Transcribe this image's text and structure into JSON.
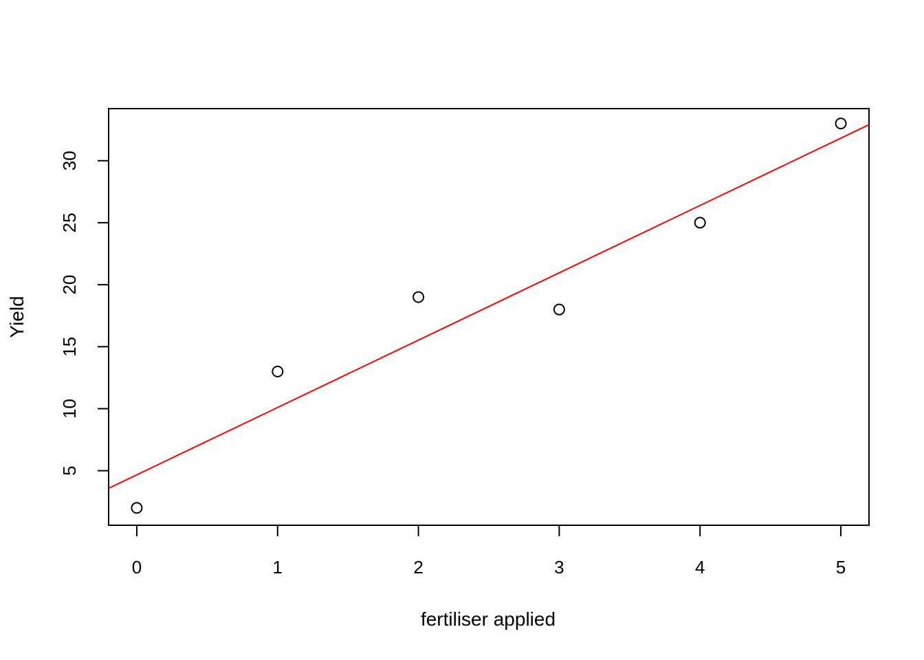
{
  "chart_data": {
    "type": "scatter",
    "title": "",
    "xlabel": "fertiliser applied",
    "ylabel": "Yield",
    "xlim": [
      -0.2,
      5.2
    ],
    "ylim": [
      0.6,
      34.2
    ],
    "x_ticks": [
      0,
      1,
      2,
      3,
      4,
      5
    ],
    "y_ticks": [
      5,
      10,
      15,
      20,
      25,
      30
    ],
    "grid": false,
    "points": [
      {
        "x": 0,
        "y": 2
      },
      {
        "x": 1,
        "y": 13
      },
      {
        "x": 2,
        "y": 19
      },
      {
        "x": 3,
        "y": 18
      },
      {
        "x": 4,
        "y": 25
      },
      {
        "x": 5,
        "y": 33
      }
    ],
    "fit_line": {
      "intercept": 4.67,
      "slope": 5.43,
      "color": "#ff0000"
    }
  }
}
